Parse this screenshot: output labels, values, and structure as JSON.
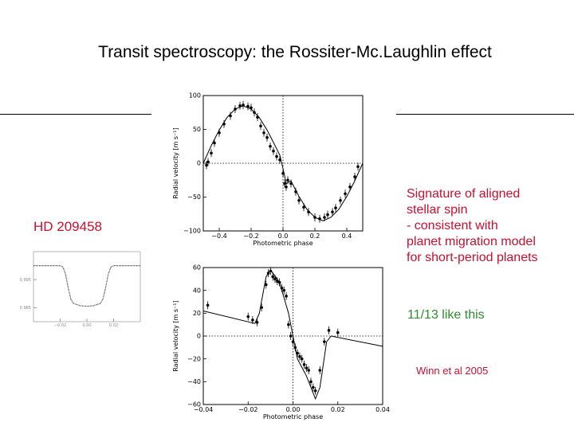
{
  "slide": {
    "title": "Transit spectroscopy: the Rossiter-Mc.Laughlin effect",
    "target": "HD 209458",
    "signature_lines": [
      "Signature of aligned",
      "stellar spin",
      "- consistent with",
      "planet migration model",
      "for short-period planets"
    ],
    "count_text": "11/13 like this",
    "citation": "Winn et al 2005",
    "colors": {
      "title": "#000000",
      "red_text": "#c8102e",
      "green_text": "#2e8b2e"
    }
  },
  "chart_data": [
    {
      "type": "scatter",
      "title": "",
      "xlabel": "Photometric phase",
      "ylabel": "Radial velocity [m s⁻¹]",
      "xlim": [
        -0.5,
        0.5
      ],
      "ylim": [
        -100,
        100
      ],
      "xticks": [
        -0.4,
        -0.2,
        0.0,
        0.2,
        0.4
      ],
      "xtick_labels": [
        "−0.4",
        "−0.2",
        "0.0",
        "0.2",
        "0.4"
      ],
      "yticks": [
        -100,
        -50,
        0,
        50,
        100
      ],
      "ytick_labels": [
        "−100",
        "−50",
        "0",
        "50",
        "100"
      ],
      "series": [
        {
          "x": [
            -0.48,
            -0.47,
            -0.45,
            -0.43,
            -0.4,
            -0.37,
            -0.33,
            -0.3,
            -0.27,
            -0.25,
            -0.22,
            -0.2,
            -0.18,
            -0.16,
            -0.14,
            -0.12,
            -0.1,
            -0.08,
            -0.06,
            -0.04,
            -0.02,
            0.0,
            0.01,
            0.02,
            0.03,
            0.05,
            0.08,
            0.1,
            0.13,
            0.16,
            0.2,
            0.23,
            0.26,
            0.28,
            0.31,
            0.33,
            0.36,
            0.39,
            0.42,
            0.45,
            0.47
          ],
          "y": [
            -3,
            2,
            15,
            30,
            45,
            58,
            70,
            80,
            85,
            86,
            84,
            82,
            75,
            68,
            55,
            45,
            38,
            25,
            18,
            10,
            5,
            -15,
            -30,
            -35,
            -25,
            -30,
            -42,
            -55,
            -65,
            -72,
            -80,
            -82,
            -80,
            -76,
            -72,
            -66,
            -55,
            -45,
            -35,
            -20,
            -5
          ]
        }
      ],
      "model_line": {
        "x": [
          -0.5,
          -0.45,
          -0.4,
          -0.35,
          -0.3,
          -0.25,
          -0.2,
          -0.15,
          -0.1,
          -0.05,
          -0.02,
          0.0,
          0.02,
          0.05,
          0.1,
          0.15,
          0.2,
          0.25,
          0.3,
          0.35,
          0.4,
          0.45,
          0.5
        ],
        "y": [
          0,
          26,
          49,
          68,
          80,
          85,
          80,
          68,
          49,
          26,
          12,
          -8,
          -30,
          -26,
          -49,
          -68,
          -80,
          -85,
          -80,
          -68,
          -49,
          -26,
          0
        ]
      }
    },
    {
      "type": "scatter",
      "title": "",
      "xlabel": "Photometric phase",
      "ylabel": "Radial velocity [m s⁻¹]",
      "xlim": [
        -0.04,
        0.04
      ],
      "ylim": [
        -60,
        60
      ],
      "xticks": [
        -0.04,
        -0.02,
        0.0,
        0.02,
        0.04
      ],
      "xtick_labels": [
        "−0.04",
        "−0.02",
        "0.00",
        "0.02",
        "0.04"
      ],
      "yticks": [
        -60,
        -40,
        -20,
        0,
        20,
        40,
        60
      ],
      "ytick_labels": [
        "−60",
        "−40",
        "−20",
        "0",
        "20",
        "40",
        "60"
      ],
      "series": [
        {
          "x": [
            -0.038,
            -0.02,
            -0.018,
            -0.016,
            -0.014,
            -0.012,
            -0.011,
            -0.01,
            -0.009,
            -0.008,
            -0.007,
            -0.006,
            -0.005,
            -0.004,
            -0.003,
            -0.002,
            -0.001,
            0.0,
            0.001,
            0.002,
            0.003,
            0.004,
            0.005,
            0.006,
            0.007,
            0.008,
            0.009,
            0.01,
            0.012,
            0.014,
            0.016,
            0.02
          ],
          "y": [
            27,
            17,
            14,
            12,
            25,
            45,
            55,
            57,
            52,
            50,
            48,
            47,
            42,
            40,
            35,
            10,
            0,
            -5,
            -10,
            -15,
            -18,
            -20,
            -25,
            -28,
            -30,
            -40,
            -45,
            -48,
            -30,
            -5,
            5,
            3
          ]
        }
      ],
      "model_line": {
        "x": [
          -0.04,
          -0.017,
          -0.015,
          -0.012,
          -0.01,
          -0.006,
          -0.002,
          0.0,
          0.002,
          0.006,
          0.01,
          0.012,
          0.015,
          0.017,
          0.04
        ],
        "y": [
          22,
          11,
          20,
          52,
          58,
          47,
          20,
          0,
          -20,
          -35,
          -55,
          -45,
          -5,
          0,
          -9
        ]
      }
    },
    {
      "type": "line",
      "title": "",
      "xlabel": "",
      "ylabel": "",
      "xlim": [
        -0.04,
        0.04
      ],
      "ylim": [
        0.98,
        1.005
      ],
      "xticks": [
        -0.02,
        0.0,
        0.02
      ],
      "xtick_labels": [
        "−0.02",
        "0.00",
        "0.02"
      ],
      "yticks": [
        0.985,
        0.995
      ],
      "ytick_labels": [
        "0.985",
        "0.995"
      ],
      "series": [
        {
          "x": [
            -0.04,
            -0.02,
            -0.018,
            -0.016,
            -0.014,
            -0.012,
            -0.01,
            -0.005,
            0.0,
            0.005,
            0.01,
            0.012,
            0.014,
            0.016,
            0.018,
            0.02,
            0.04
          ],
          "y": [
            1.0,
            1.0,
            0.9995,
            0.997,
            0.992,
            0.988,
            0.9865,
            0.9857,
            0.9855,
            0.9857,
            0.9865,
            0.988,
            0.992,
            0.997,
            0.9995,
            1.0,
            1.0
          ]
        }
      ]
    }
  ]
}
